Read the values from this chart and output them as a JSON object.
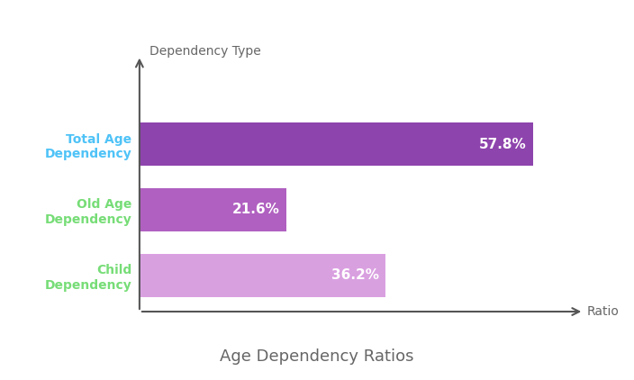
{
  "title": "Age Dependency Ratios",
  "ylabel": "Dependency Type",
  "xlabel": "Ratio",
  "categories": [
    "Child\nDependency",
    "Old Age\nDependency",
    "Total Age\nDependency"
  ],
  "values": [
    36.2,
    21.6,
    57.8
  ],
  "bar_colors": [
    "#d9a0e0",
    "#b060c0",
    "#8e44ad"
  ],
  "label_colors": [
    "#77dd77",
    "#77dd77",
    "#4fc3f7"
  ],
  "value_labels": [
    "36.2%",
    "21.6%",
    "57.8%"
  ],
  "background_color": "#ffffff",
  "bar_height": 0.65,
  "xlim": [
    0,
    68
  ],
  "title_fontsize": 13,
  "ylabel_fontsize": 10,
  "xlabel_fontsize": 10,
  "tick_fontsize": 10
}
